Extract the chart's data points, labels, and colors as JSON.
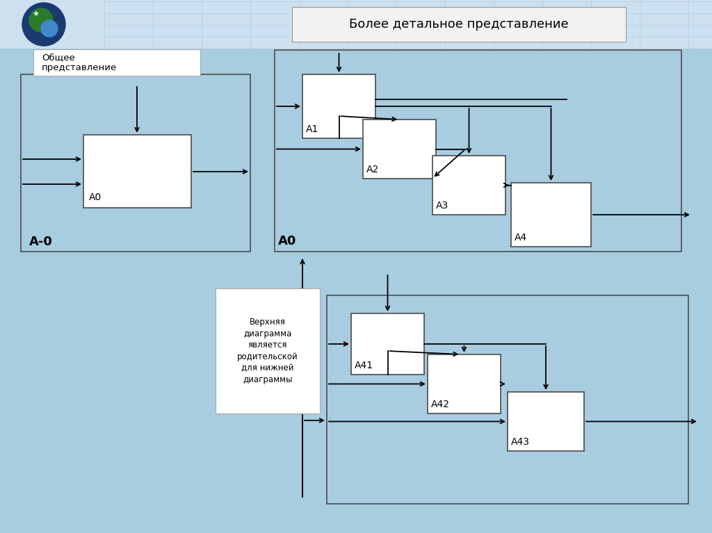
{
  "bg_color": "#a8cce0",
  "header_bg": "#c0d8ea",
  "title_text": "Более детальное представление",
  "label_general": "Общее\nпредставление",
  "label_A0_diag": "А-0",
  "label_A0_block": "A0",
  "label_A0_main": "A0",
  "label_A1": "A1",
  "label_A2": "A2",
  "label_A3": "A3",
  "label_A4": "A4",
  "label_A41": "A41",
  "label_A42": "A42",
  "label_A43": "A43",
  "arrow_label_text": "Верхняя\nдиаграмма\nявляется\nродительской\nдля нижней\nдиаграммы"
}
